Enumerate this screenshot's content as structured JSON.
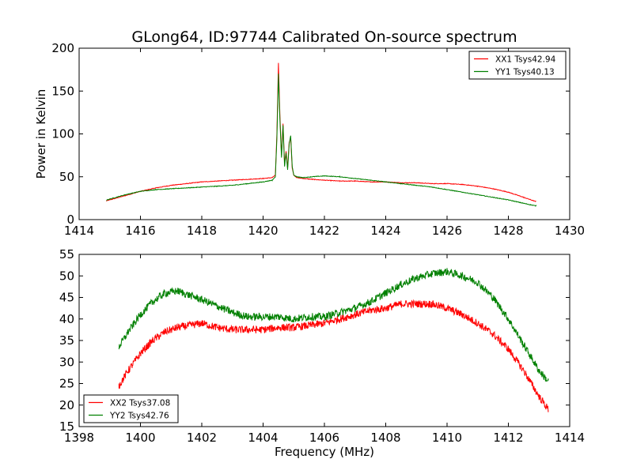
{
  "title": "GLong64, ID:97744 Calibrated On-source spectrum",
  "colors": {
    "red": "#ff0000",
    "green": "#008000"
  },
  "chart_data": [
    {
      "type": "line",
      "title": "GLong64, ID:97744 Calibrated On-source spectrum",
      "xlabel": "",
      "ylabel": "Power in Kelvin",
      "xlim": [
        1414,
        1430
      ],
      "ylim": [
        0,
        200
      ],
      "xticks": [
        1414,
        1416,
        1418,
        1420,
        1422,
        1424,
        1426,
        1428,
        1430
      ],
      "yticks": [
        0,
        50,
        100,
        150,
        200
      ],
      "grid": false,
      "legend_position": "top-right",
      "series": [
        {
          "name": "XX1 Tsys42.94",
          "color": "#ff0000",
          "x": [
            1414.9,
            1415.5,
            1416.0,
            1416.5,
            1417.0,
            1417.5,
            1418.0,
            1418.5,
            1419.0,
            1419.5,
            1420.0,
            1420.3,
            1420.4,
            1420.45,
            1420.5,
            1420.55,
            1420.6,
            1420.65,
            1420.7,
            1420.75,
            1420.8,
            1420.85,
            1420.9,
            1420.95,
            1421.0,
            1421.1,
            1421.3,
            1421.6,
            1422.0,
            1422.5,
            1423.0,
            1423.5,
            1424.0,
            1424.5,
            1425.0,
            1425.5,
            1426.0,
            1426.5,
            1427.0,
            1427.5,
            1428.0,
            1428.5,
            1428.9
          ],
          "y": [
            22,
            28,
            33,
            37,
            40,
            42,
            44,
            45,
            46,
            47,
            48,
            49,
            52,
            100,
            183,
            120,
            75,
            112,
            65,
            80,
            60,
            90,
            95,
            60,
            52,
            49,
            48,
            47,
            46,
            45,
            45,
            44,
            44,
            43,
            43,
            42,
            42,
            41,
            39,
            36,
            32,
            26,
            21
          ]
        },
        {
          "name": "YY1 Tsys40.13",
          "color": "#008000",
          "x": [
            1414.9,
            1415.5,
            1416.0,
            1416.5,
            1417.0,
            1417.5,
            1418.0,
            1418.5,
            1419.0,
            1419.5,
            1420.0,
            1420.3,
            1420.4,
            1420.45,
            1420.5,
            1420.55,
            1420.6,
            1420.65,
            1420.7,
            1420.75,
            1420.8,
            1420.85,
            1420.9,
            1420.95,
            1421.0,
            1421.1,
            1421.3,
            1421.6,
            1422.0,
            1422.5,
            1423.0,
            1423.5,
            1424.0,
            1424.5,
            1425.0,
            1425.5,
            1426.0,
            1426.5,
            1427.0,
            1427.5,
            1428.0,
            1428.5,
            1428.9
          ],
          "y": [
            23,
            29,
            33,
            35,
            36,
            37,
            38,
            39,
            40,
            42,
            44,
            46,
            50,
            95,
            170,
            115,
            72,
            110,
            62,
            78,
            58,
            88,
            98,
            62,
            52,
            50,
            49,
            50,
            51,
            50,
            48,
            46,
            44,
            42,
            40,
            38,
            35,
            32,
            29,
            26,
            23,
            19,
            16
          ]
        }
      ]
    },
    {
      "type": "line",
      "title": "",
      "xlabel": "Frequency (MHz)",
      "ylabel": "",
      "xlim": [
        1398,
        1414
      ],
      "ylim": [
        15,
        55
      ],
      "xticks": [
        1398,
        1400,
        1402,
        1404,
        1406,
        1408,
        1410,
        1412,
        1414
      ],
      "yticks": [
        15,
        20,
        25,
        30,
        35,
        40,
        45,
        50,
        55
      ],
      "grid": false,
      "legend_position": "bottom-left",
      "series": [
        {
          "name": "XX2 Tsys37.08",
          "color": "#ff0000",
          "x": [
            1399.3,
            1399.6,
            1400.0,
            1400.4,
            1400.8,
            1401.2,
            1401.6,
            1402.0,
            1402.5,
            1403.0,
            1403.5,
            1404.0,
            1404.5,
            1405.0,
            1405.5,
            1406.0,
            1406.5,
            1407.0,
            1407.5,
            1408.0,
            1408.5,
            1409.0,
            1409.5,
            1410.0,
            1410.5,
            1411.0,
            1411.5,
            1412.0,
            1412.5,
            1413.0,
            1413.3
          ],
          "y": [
            24.5,
            28,
            32,
            35,
            37,
            38,
            38.5,
            39,
            38,
            37.5,
            37.5,
            37.5,
            38,
            38,
            38.5,
            39,
            40,
            41,
            42,
            42.5,
            43.5,
            43.5,
            43.5,
            42.5,
            41,
            39,
            36.5,
            33,
            28,
            22,
            19
          ]
        },
        {
          "name": "YY2 Tsys42.76",
          "color": "#008000",
          "x": [
            1399.3,
            1399.6,
            1400.0,
            1400.4,
            1400.8,
            1401.2,
            1401.6,
            1402.0,
            1402.5,
            1403.0,
            1403.5,
            1404.0,
            1404.5,
            1405.0,
            1405.5,
            1406.0,
            1406.5,
            1407.0,
            1407.5,
            1408.0,
            1408.5,
            1409.0,
            1409.5,
            1410.0,
            1410.5,
            1411.0,
            1411.5,
            1412.0,
            1412.5,
            1413.0,
            1413.3
          ],
          "y": [
            33.5,
            37,
            41,
            44,
            46,
            46.5,
            45.5,
            44.5,
            43,
            41.5,
            40.5,
            40.5,
            40.5,
            40,
            40.5,
            40.5,
            41.5,
            42.5,
            44,
            46,
            48,
            49.5,
            50.5,
            51,
            50,
            48.5,
            45,
            40,
            34,
            28,
            25.5
          ]
        }
      ]
    }
  ]
}
